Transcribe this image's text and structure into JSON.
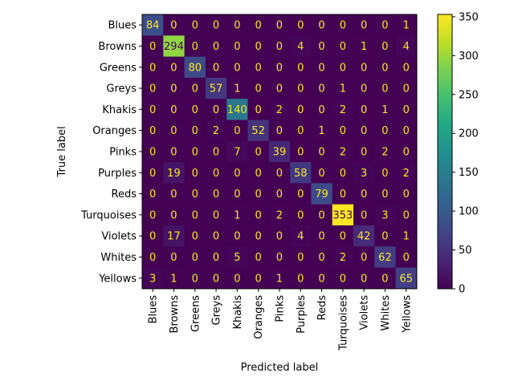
{
  "chart_data": {
    "type": "heatmap",
    "title": "",
    "xlabel": "Predicted label",
    "ylabel": "True label",
    "labels": [
      "Blues",
      "Browns",
      "Greens",
      "Greys",
      "Khakis",
      "Oranges",
      "Pinks",
      "Purples",
      "Reds",
      "Turquoises",
      "Violets",
      "Whites",
      "Yellows"
    ],
    "matrix": [
      [
        84,
        0,
        0,
        0,
        0,
        0,
        0,
        0,
        0,
        0,
        0,
        0,
        1
      ],
      [
        0,
        294,
        0,
        0,
        0,
        0,
        0,
        4,
        0,
        0,
        1,
        0,
        4
      ],
      [
        0,
        0,
        80,
        0,
        0,
        0,
        0,
        0,
        0,
        0,
        0,
        0,
        0
      ],
      [
        0,
        0,
        0,
        57,
        1,
        0,
        0,
        0,
        0,
        1,
        0,
        0,
        0
      ],
      [
        0,
        0,
        0,
        0,
        140,
        0,
        2,
        0,
        0,
        2,
        0,
        1,
        0
      ],
      [
        0,
        0,
        0,
        2,
        0,
        52,
        0,
        0,
        1,
        0,
        0,
        0,
        0
      ],
      [
        0,
        0,
        0,
        0,
        7,
        0,
        39,
        0,
        0,
        2,
        0,
        2,
        0
      ],
      [
        0,
        19,
        0,
        0,
        0,
        0,
        0,
        58,
        0,
        0,
        3,
        0,
        2
      ],
      [
        0,
        0,
        0,
        0,
        0,
        0,
        0,
        0,
        79,
        0,
        0,
        0,
        0
      ],
      [
        0,
        0,
        0,
        0,
        1,
        0,
        2,
        0,
        0,
        353,
        0,
        3,
        0
      ],
      [
        0,
        17,
        0,
        0,
        0,
        0,
        0,
        4,
        0,
        0,
        42,
        0,
        1
      ],
      [
        0,
        0,
        0,
        0,
        5,
        0,
        0,
        0,
        0,
        2,
        0,
        62,
        0
      ],
      [
        3,
        1,
        0,
        0,
        0,
        0,
        1,
        0,
        0,
        0,
        0,
        0,
        65
      ]
    ],
    "colorbar": {
      "colormap": "viridis",
      "range": [
        0,
        353
      ],
      "ticks": [
        0,
        50,
        100,
        150,
        200,
        250,
        300,
        350
      ]
    }
  }
}
